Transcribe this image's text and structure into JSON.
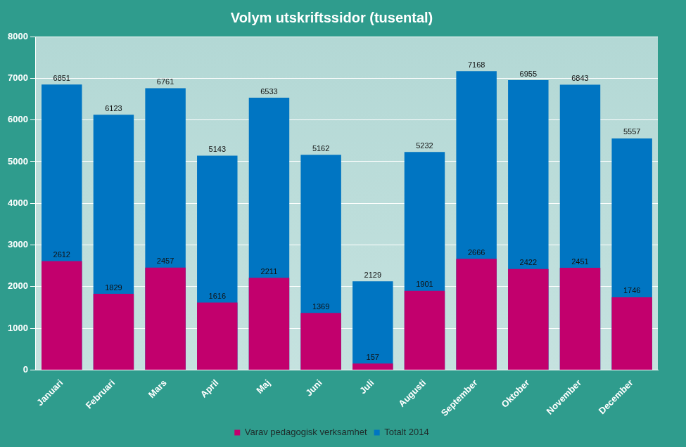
{
  "chart_data": {
    "type": "bar",
    "title": "Volym utskriftssidor (tusental)",
    "categories": [
      "Januari",
      "Februari",
      "Mars",
      "April",
      "Maj",
      "Juni",
      "Juli",
      "Augusti",
      "September",
      "Oktober",
      "November",
      "December"
    ],
    "series": [
      {
        "name": "Totalt 2014",
        "color": "#0075c2",
        "values": [
          6851,
          6123,
          6761,
          5143,
          6533,
          5162,
          2129,
          5232,
          7168,
          6955,
          6843,
          5557
        ]
      },
      {
        "name": "Varav pedagogisk verksamhet",
        "color": "#c2006d",
        "values": [
          2612,
          1829,
          2457,
          1616,
          2211,
          1369,
          157,
          1901,
          2666,
          2422,
          2451,
          1746
        ]
      }
    ],
    "ylim": [
      0,
      8000
    ],
    "yticks": [
      0,
      1000,
      2000,
      3000,
      4000,
      5000,
      6000,
      7000,
      8000
    ],
    "grid": true,
    "legend": "bottom",
    "stacked": false,
    "data_labels": true
  }
}
